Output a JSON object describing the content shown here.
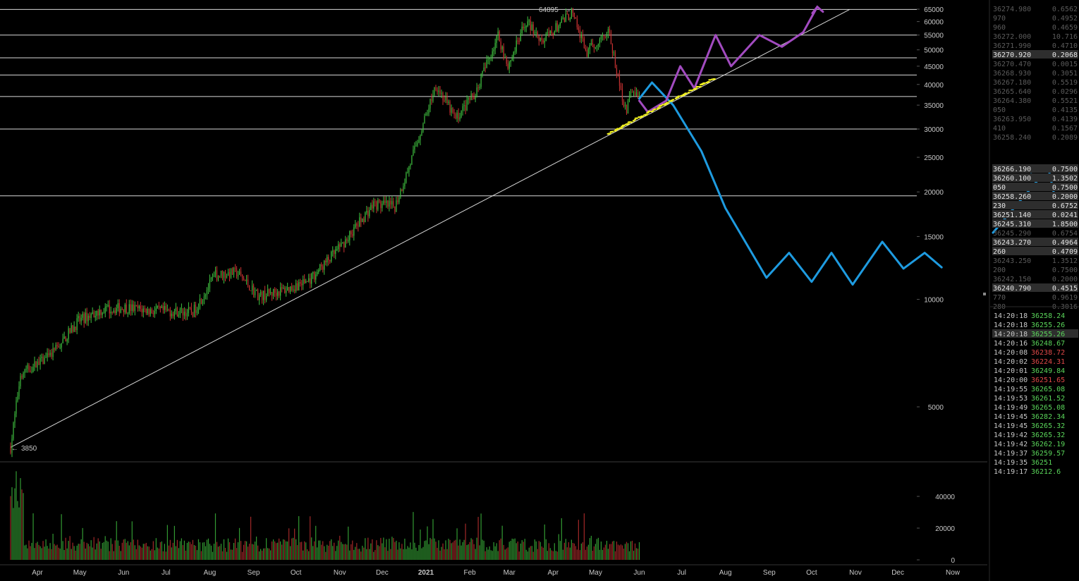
{
  "chart_data": {
    "type": "candlestick",
    "price_scale": "log",
    "ylim": [
      3600,
      66000
    ],
    "price_ticks": [
      65000,
      60000,
      55000,
      50000,
      45000,
      40000,
      35000,
      30000,
      25000,
      20000,
      15000,
      10000,
      5000
    ],
    "volume_ticks": [
      40000,
      20000,
      0
    ],
    "volume_ylim": [
      0,
      55000
    ],
    "x_tick_labels": [
      "Apr",
      "May",
      "Jun",
      "Jul",
      "Aug",
      "Sep",
      "Oct",
      "Nov",
      "Dec",
      "2021",
      "Feb",
      "Mar",
      "Apr",
      "May",
      "Jun",
      "Jul",
      "Aug",
      "Sep",
      "Oct",
      "Nov",
      "Dec",
      "Now"
    ],
    "high_label": "64895",
    "low_label": "3850",
    "horizontal_levels": [
      64895,
      55000,
      47500,
      42500,
      37000,
      30000,
      19500
    ],
    "trendline": {
      "from": {
        "date": "2020-03-13",
        "price": 3850
      },
      "to": {
        "date": "2021-10-28",
        "price": 64895
      }
    },
    "price_path": [
      [
        "2020-03-13",
        3850
      ],
      [
        "2020-03-20",
        6200
      ],
      [
        "2020-04-10",
        6900
      ],
      [
        "2020-04-30",
        8700
      ],
      [
        "2020-05-15",
        9300
      ],
      [
        "2020-06-01",
        9500
      ],
      [
        "2020-06-20",
        9300
      ],
      [
        "2020-07-20",
        9200
      ],
      [
        "2020-08-05",
        11700
      ],
      [
        "2020-08-20",
        11900
      ],
      [
        "2020-09-05",
        10200
      ],
      [
        "2020-09-25",
        10700
      ],
      [
        "2020-10-10",
        11300
      ],
      [
        "2020-10-31",
        13800
      ],
      [
        "2020-11-25",
        18500
      ],
      [
        "2020-12-10",
        18200
      ],
      [
        "2020-12-20",
        23500
      ],
      [
        "2021-01-08",
        40000
      ],
      [
        "2021-01-22",
        32000
      ],
      [
        "2021-02-05",
        38000
      ],
      [
        "2021-02-21",
        55000
      ],
      [
        "2021-02-28",
        45000
      ],
      [
        "2021-03-13",
        60000
      ],
      [
        "2021-03-25",
        53000
      ],
      [
        "2021-04-14",
        63500
      ],
      [
        "2021-04-25",
        49000
      ],
      [
        "2021-05-10",
        57000
      ],
      [
        "2021-05-19",
        38000
      ],
      [
        "2021-05-23",
        34000
      ],
      [
        "2021-05-27",
        39000
      ],
      [
        "2021-06-01",
        36200
      ]
    ],
    "annotations": {
      "blue_path": [
        [
          "2021-06-01",
          36500
        ],
        [
          "2021-06-10",
          40500
        ],
        [
          "2021-06-25",
          35000
        ],
        [
          "2021-07-15",
          26000
        ],
        [
          "2021-08-01",
          18000
        ],
        [
          "2021-08-30",
          11500
        ],
        [
          "2021-09-15",
          13500
        ],
        [
          "2021-10-01",
          11200
        ],
        [
          "2021-10-15",
          13500
        ],
        [
          "2021-10-30",
          11000
        ],
        [
          "2021-11-20",
          14500
        ],
        [
          "2021-12-05",
          12200
        ],
        [
          "2021-12-20",
          13500
        ],
        [
          "2022-01-01",
          12300
        ]
      ],
      "purple_path": [
        [
          "2021-06-01",
          36000
        ],
        [
          "2021-06-07",
          33500
        ],
        [
          "2021-06-20",
          36000
        ],
        [
          "2021-06-30",
          45000
        ],
        [
          "2021-07-10",
          39000
        ],
        [
          "2021-07-25",
          55000
        ],
        [
          "2021-08-05",
          45000
        ],
        [
          "2021-08-25",
          55000
        ],
        [
          "2021-09-10",
          51000
        ],
        [
          "2021-09-25",
          56000
        ],
        [
          "2021-10-05",
          66000
        ]
      ]
    }
  },
  "order_book": {
    "asks": [
      {
        "price": "36274.980",
        "size": "0.6562"
      },
      {
        "price": "970",
        "size": "0.4952"
      },
      {
        "price": "960",
        "size": "0.4659"
      },
      {
        "price": "36272.000",
        "size": "10.716"
      },
      {
        "price": "36271.990",
        "size": "0.4710"
      },
      {
        "price": "36270.920",
        "size": "0.2068",
        "highlight": true
      },
      {
        "price": "36270.470",
        "size": "0.0015"
      },
      {
        "price": "36268.930",
        "size": "0.3051"
      },
      {
        "price": "36267.180",
        "size": "0.5519"
      },
      {
        "price": "36265.640",
        "size": "0.0296"
      },
      {
        "price": "36264.380",
        "size": "0.5521"
      },
      {
        "price": "050",
        "size": "0.4135"
      },
      {
        "price": "36263.950",
        "size": "0.4139"
      },
      {
        "price": "410",
        "size": "0.1567"
      },
      {
        "price": "36258.240",
        "size": "0.2089"
      }
    ],
    "bids": [
      {
        "price": "36266.190",
        "size": "0.7500",
        "highlight": true
      },
      {
        "price": "36260.100",
        "size": "1.3502",
        "highlight": true
      },
      {
        "price": "050",
        "size": "0.7500",
        "highlight": true
      },
      {
        "price": "36258.260",
        "size": "0.2000",
        "highlight": true
      },
      {
        "price": "230",
        "size": "0.6752",
        "highlight": true
      },
      {
        "price": "36251.140",
        "size": "0.0241",
        "highlight": true
      },
      {
        "price": "36245.310",
        "size": "1.8500",
        "highlight": true
      },
      {
        "price": "36245.290",
        "size": "0.6754"
      },
      {
        "price": "36243.270",
        "size": "0.4964",
        "highlight": true
      },
      {
        "price": "260",
        "size": "0.4709",
        "highlight": true
      },
      {
        "price": "36243.250",
        "size": "1.3512"
      },
      {
        "price": "200",
        "size": "0.7500"
      },
      {
        "price": "36242.150",
        "size": "0.2000"
      },
      {
        "price": "36240.790",
        "size": "0.4515",
        "highlight": true
      },
      {
        "price": "770",
        "size": "0.9619"
      },
      {
        "price": "280",
        "size": "0.3016"
      }
    ]
  },
  "trades": [
    {
      "time": "14:20:18",
      "price": "36258.24",
      "side": "buy"
    },
    {
      "time": "14:20:18",
      "price": "36255.26",
      "side": "buy"
    },
    {
      "time": "14:20:18",
      "price": "36255.26",
      "side": "buy",
      "highlight": true
    },
    {
      "time": "14:20:16",
      "price": "36248.67",
      "side": "buy"
    },
    {
      "time": "14:20:08",
      "price": "36238.72",
      "side": "sell"
    },
    {
      "time": "14:20:02",
      "price": "36224.31",
      "side": "sell"
    },
    {
      "time": "14:20:01",
      "price": "36249.84",
      "side": "buy"
    },
    {
      "time": "14:20:00",
      "price": "36251.65",
      "side": "sell"
    },
    {
      "time": "14:19:55",
      "price": "36265.08",
      "side": "buy"
    },
    {
      "time": "14:19:53",
      "price": "36261.52",
      "side": "buy"
    },
    {
      "time": "14:19:49",
      "price": "36265.08",
      "side": "buy"
    },
    {
      "time": "14:19:45",
      "price": "36282.34",
      "side": "buy"
    },
    {
      "time": "14:19:45",
      "price": "36265.32",
      "side": "buy"
    },
    {
      "time": "14:19:42",
      "price": "36265.32",
      "side": "buy"
    },
    {
      "time": "14:19:42",
      "price": "36262.19",
      "side": "buy"
    },
    {
      "time": "14:19:37",
      "price": "36259.57",
      "side": "buy"
    },
    {
      "time": "14:19:35",
      "price": "36251",
      "side": "buy"
    },
    {
      "time": "14:19:17",
      "price": "36212.6",
      "side": "buy"
    }
  ],
  "colors": {
    "background": "#000000",
    "up": "#3fbf3f",
    "down": "#c83232",
    "grid": "#ffffff",
    "text": "#c8c8c8",
    "blue_annotation": "#1e9be0",
    "purple_annotation": "#a24bc0",
    "yellow_annotation": "#f0f020"
  }
}
